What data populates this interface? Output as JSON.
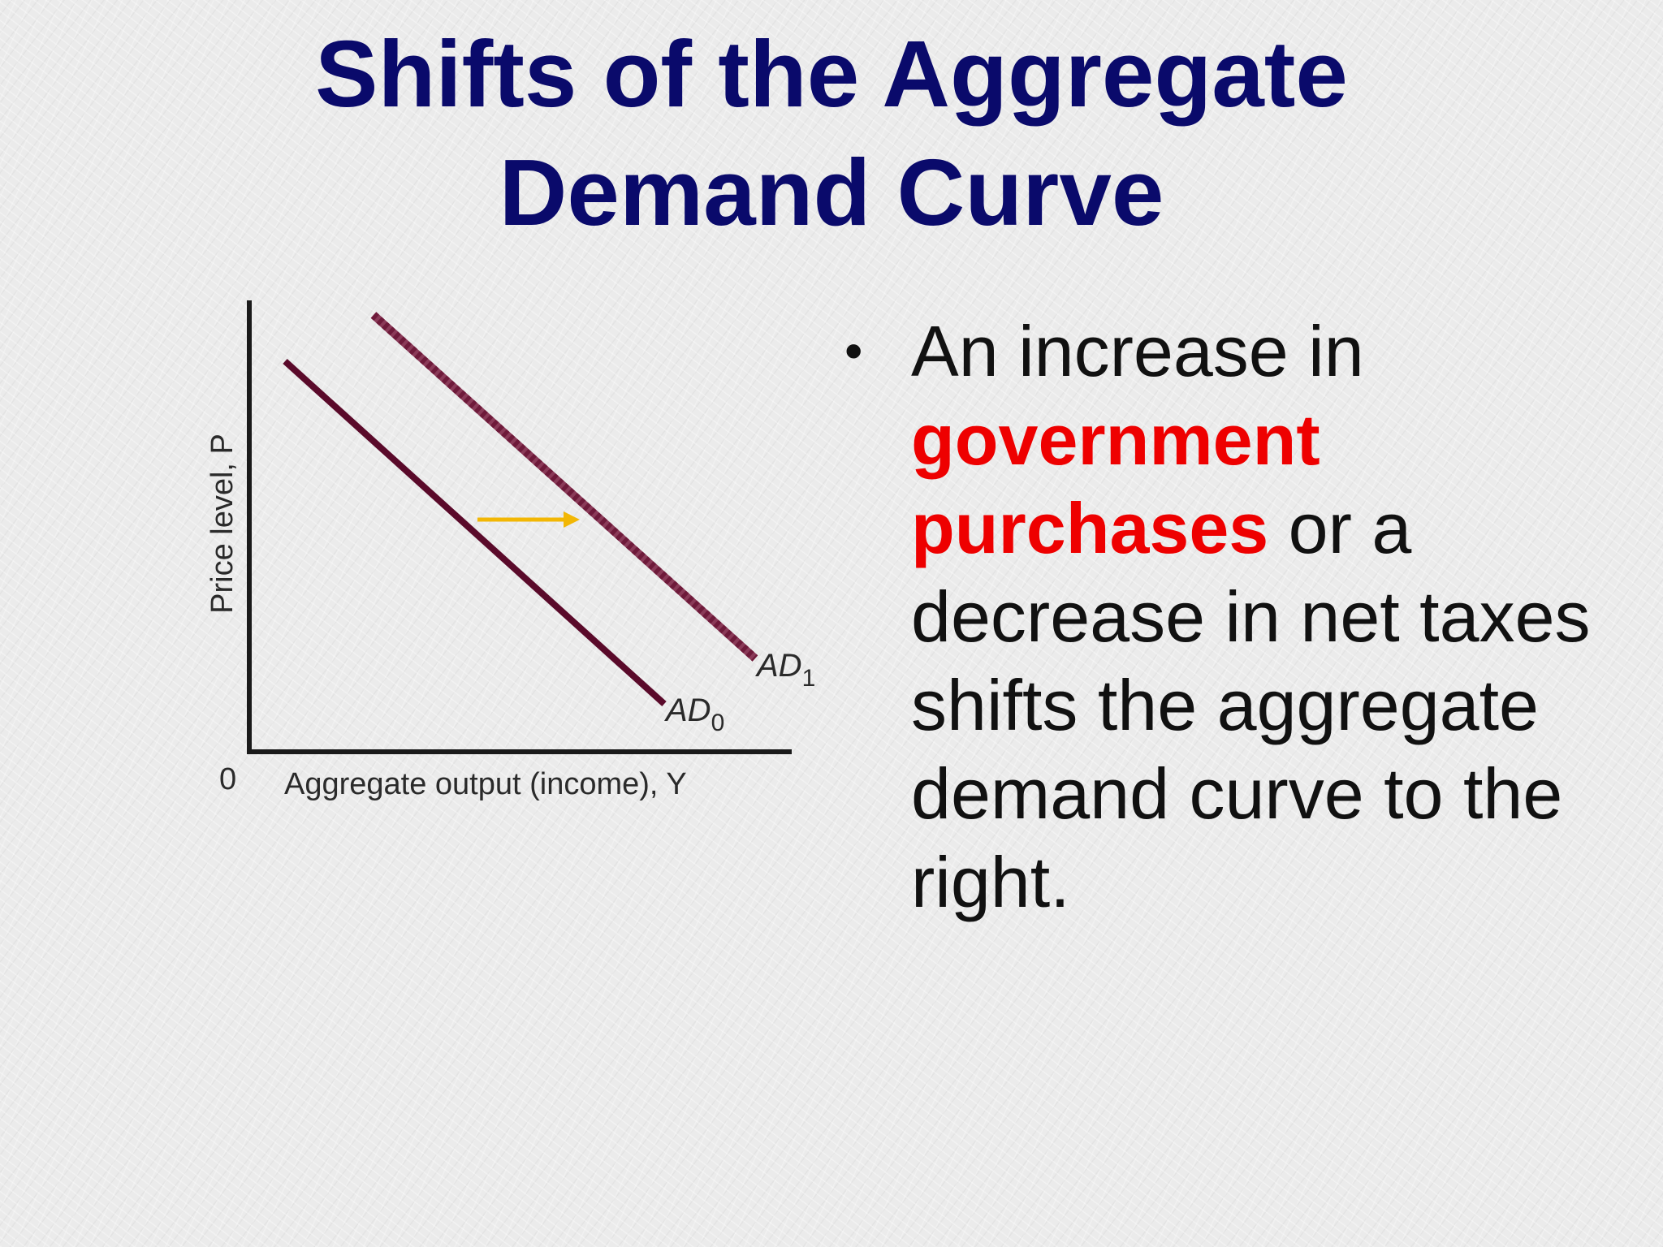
{
  "slide": {
    "title_line1": "Shifts of the Aggregate",
    "title_line2": "Demand Curve"
  },
  "chart_data": {
    "type": "line",
    "title": "",
    "xlabel": "Aggregate output (income), Y",
    "ylabel": "Price level, P",
    "origin_label": "0",
    "series": [
      {
        "name": "AD0",
        "label_main": "AD",
        "label_sub": "0",
        "style": "solid",
        "color": "#5a0a2a"
      },
      {
        "name": "AD1",
        "label_main": "AD",
        "label_sub": "1",
        "style": "dotted",
        "color": "#6e1a3a"
      }
    ],
    "shift_arrow": {
      "direction": "right",
      "color": "#f2b705"
    }
  },
  "bullet": {
    "marker": "•",
    "text_before": "An increase in ",
    "emphasis_line1": "government",
    "emphasis_line2": "purchases",
    "text_after": " or a decrease in net taxes shifts the aggregate demand curve to the right.",
    "emphasis_color": "#ee0000"
  }
}
